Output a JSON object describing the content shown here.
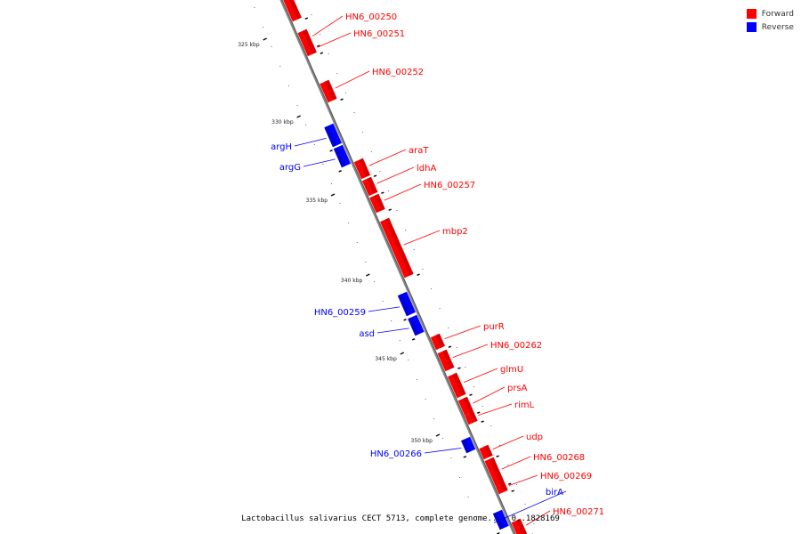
{
  "legend": {
    "forward_label": "Forward",
    "reverse_label": "Reverse",
    "forward_color": "#ff0000",
    "reverse_color": "#0000ff"
  },
  "footer": {
    "text": "Lactobacillus salivarius CECT 5713, complete genome.. - 0..1828169"
  },
  "ticks": [
    "325 kbp",
    "330 kbp",
    "335 kbp",
    "340 kbp",
    "345 kbp",
    "350 kbp"
  ],
  "genes": [
    {
      "name": "",
      "strand": "forward"
    },
    {
      "name": "HN6_00250",
      "strand": "forward"
    },
    {
      "name": "HN6_00251",
      "strand": "forward"
    },
    {
      "name": "HN6_00252",
      "strand": "forward"
    },
    {
      "name": "argH",
      "strand": "reverse"
    },
    {
      "name": "argG",
      "strand": "reverse"
    },
    {
      "name": "araT",
      "strand": "forward"
    },
    {
      "name": "ldhA",
      "strand": "forward"
    },
    {
      "name": "HN6_00257",
      "strand": "forward"
    },
    {
      "name": "mbp2",
      "strand": "forward"
    },
    {
      "name": "HN6_00259",
      "strand": "reverse"
    },
    {
      "name": "asd",
      "strand": "reverse"
    },
    {
      "name": "purR",
      "strand": "forward"
    },
    {
      "name": "HN6_00262",
      "strand": "forward"
    },
    {
      "name": "glmU",
      "strand": "forward"
    },
    {
      "name": "prsA",
      "strand": "forward"
    },
    {
      "name": "rimL",
      "strand": "forward"
    },
    {
      "name": "HN6_00266",
      "strand": "reverse"
    },
    {
      "name": "udp",
      "strand": "forward"
    },
    {
      "name": "HN6_00268",
      "strand": "forward"
    },
    {
      "name": "HN6_00269",
      "strand": "forward"
    },
    {
      "name": "birA",
      "strand": "reverse"
    },
    {
      "name": "HN6_00271",
      "strand": "forward"
    }
  ]
}
